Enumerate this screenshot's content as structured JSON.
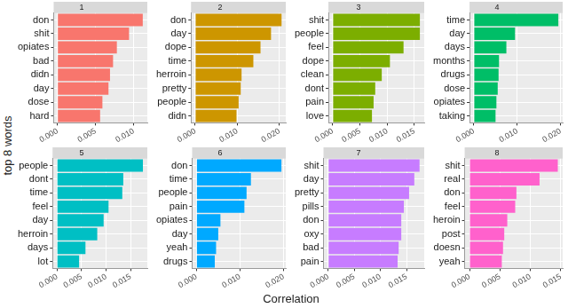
{
  "xlabel": "Correlation",
  "ylabel": "top 8 words",
  "chart_data": [
    {
      "type": "bar",
      "orientation": "horizontal",
      "title": "1",
      "color": "#F8766D",
      "grid": true,
      "categories": [
        "don",
        "shit",
        "opiates",
        "bad",
        "didn",
        "day",
        "dose",
        "hard"
      ],
      "values": [
        0.0112,
        0.0094,
        0.0078,
        0.0073,
        0.0069,
        0.0067,
        0.0059,
        0.0056
      ],
      "xlim": [
        -0.0005,
        0.0118
      ],
      "xticks": [
        {
          "value": 0,
          "label": "0.000"
        },
        0.005,
        {
          "value": 0.01,
          "label": "0.010"
        }
      ]
    },
    {
      "type": "bar",
      "orientation": "horizontal",
      "title": "2",
      "color": "#CD9600",
      "grid": true,
      "categories": [
        "don",
        "day",
        "dope",
        "time",
        "herroin",
        "pretty",
        "people",
        "didn"
      ],
      "values": [
        0.0205,
        0.018,
        0.0155,
        0.0138,
        0.011,
        0.0108,
        0.0103,
        0.0098
      ],
      "xlim": [
        -0.001,
        0.0215
      ],
      "xticks": [
        {
          "value": 0,
          "label": "0.000"
        },
        {
          "value": 0.01,
          "label": "0.010"
        },
        {
          "value": 0.02,
          "label": "0.020"
        }
      ]
    },
    {
      "type": "bar",
      "orientation": "horizontal",
      "title": "3",
      "color": "#7CAE00",
      "grid": true,
      "categories": [
        "shit",
        "people",
        "feel",
        "dope",
        "clean",
        "dont",
        "pain",
        "love"
      ],
      "values": [
        0.016,
        0.016,
        0.013,
        0.0105,
        0.009,
        0.0078,
        0.0075,
        0.0072
      ],
      "xlim": [
        -0.0008,
        0.0168
      ],
      "xticks": [
        {
          "value": 0,
          "label": "0.000"
        },
        0.005,
        {
          "value": 0.01,
          "label": "0.010"
        },
        0.015
      ]
    },
    {
      "type": "bar",
      "orientation": "horizontal",
      "title": "4",
      "color": "#00BE67",
      "grid": true,
      "categories": [
        "time",
        "day",
        "days",
        "months",
        "drugs",
        "dose",
        "opiates",
        "taking"
      ],
      "values": [
        0.0195,
        0.0095,
        0.0075,
        0.0058,
        0.0057,
        0.0055,
        0.0052,
        0.005
      ],
      "xlim": [
        -0.001,
        0.0205
      ],
      "xticks": [
        {
          "value": 0,
          "label": "0.000"
        },
        {
          "value": 0.01,
          "label": "0.010"
        },
        {
          "value": 0.02,
          "label": "0.020"
        }
      ]
    },
    {
      "type": "bar",
      "orientation": "horizontal",
      "title": "5",
      "color": "#00BFC4",
      "grid": true,
      "categories": [
        "people",
        "dont",
        "time",
        "feel",
        "day",
        "herroin",
        "days",
        "lot"
      ],
      "values": [
        0.0175,
        0.0135,
        0.0133,
        0.0105,
        0.0095,
        0.0082,
        0.0058,
        0.0045
      ],
      "xlim": [
        -0.0009,
        0.0184
      ],
      "xticks": [
        {
          "value": 0,
          "label": "0.000"
        },
        0.005,
        {
          "value": 0.01,
          "label": "0.010"
        },
        0.015
      ]
    },
    {
      "type": "bar",
      "orientation": "horizontal",
      "title": "6",
      "color": "#00A9FF",
      "grid": true,
      "categories": [
        "don",
        "time",
        "people",
        "pain",
        "opiates",
        "day",
        "yeah",
        "drugs"
      ],
      "values": [
        0.0195,
        0.0125,
        0.0115,
        0.011,
        0.0055,
        0.005,
        0.0045,
        0.0042
      ],
      "xlim": [
        -0.001,
        0.0205
      ],
      "xticks": [
        {
          "value": 0,
          "label": "0.000"
        },
        {
          "value": 0.01,
          "label": "0.010"
        },
        {
          "value": 0.02,
          "label": "0.020"
        }
      ]
    },
    {
      "type": "bar",
      "orientation": "horizontal",
      "title": "7",
      "color": "#C77CFF",
      "grid": true,
      "categories": [
        "shit",
        "day",
        "pretty",
        "pills",
        "don",
        "oxy",
        "bad",
        "pain"
      ],
      "values": [
        0.0175,
        0.0165,
        0.0155,
        0.0145,
        0.014,
        0.014,
        0.0135,
        0.0133
      ],
      "xlim": [
        -0.0009,
        0.0184
      ],
      "xticks": [
        {
          "value": 0,
          "label": "0.000"
        },
        0.005,
        {
          "value": 0.01,
          "label": "0.010"
        },
        0.015
      ]
    },
    {
      "type": "bar",
      "orientation": "horizontal",
      "title": "8",
      "color": "#FF61CC",
      "grid": true,
      "categories": [
        "shit",
        "real",
        "don",
        "feel",
        "heroin",
        "post",
        "doesn",
        "yeah"
      ],
      "values": [
        0.0145,
        0.0115,
        0.0077,
        0.0075,
        0.0062,
        0.0057,
        0.0055,
        0.0053
      ],
      "xlim": [
        -0.0008,
        0.0153
      ],
      "xticks": [
        {
          "value": 0,
          "label": "0.000"
        },
        0.005,
        {
          "value": 0.01,
          "label": "0.010"
        },
        0.015
      ]
    }
  ]
}
